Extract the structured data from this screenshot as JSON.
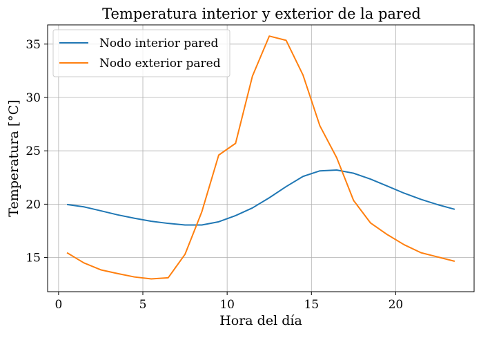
{
  "chart_data": {
    "type": "line",
    "title": "Temperatura interior y exterior de la pared",
    "xlabel": "Hora del día",
    "ylabel": "Temperatura [°C]",
    "xlim": [
      -0.65,
      24.65
    ],
    "ylim": [
      11.8,
      36.8
    ],
    "xticks": [
      0,
      5,
      10,
      15,
      20
    ],
    "yticks": [
      15,
      20,
      25,
      30,
      35
    ],
    "grid": true,
    "legend_position": "top-left",
    "x": [
      0.5,
      1.5,
      2.5,
      3.5,
      4.5,
      5.5,
      6.5,
      7.5,
      8.5,
      9.5,
      10.5,
      11.5,
      12.5,
      13.5,
      14.5,
      15.5,
      16.5,
      17.5,
      18.5,
      19.5,
      20.5,
      21.5,
      22.5,
      23.5
    ],
    "series": [
      {
        "name": "Nodo interior pared",
        "color": "#1f77b4",
        "values": [
          19.97,
          19.75,
          19.38,
          19.0,
          18.68,
          18.4,
          18.2,
          18.05,
          18.05,
          18.35,
          18.93,
          19.65,
          20.6,
          21.65,
          22.6,
          23.12,
          23.2,
          22.9,
          22.35,
          21.7,
          21.03,
          20.45,
          19.95,
          19.52
        ]
      },
      {
        "name": "Nodo exterior pared",
        "color": "#ff7f0e",
        "values": [
          15.45,
          14.5,
          13.85,
          13.5,
          13.18,
          13.0,
          13.1,
          15.3,
          19.3,
          24.6,
          25.7,
          32.0,
          35.75,
          35.35,
          32.1,
          27.35,
          24.35,
          20.35,
          18.25,
          17.15,
          16.2,
          15.45,
          15.05,
          14.65
        ]
      }
    ]
  }
}
